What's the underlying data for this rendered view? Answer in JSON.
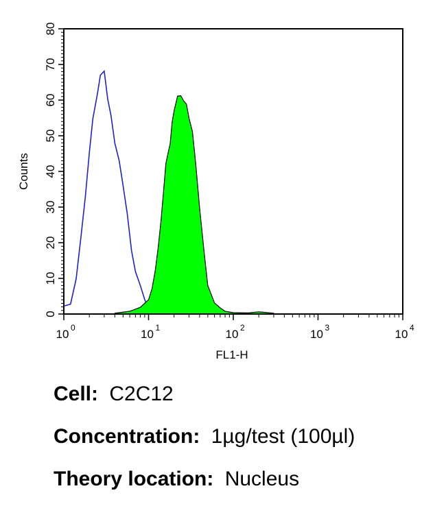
{
  "chart_data": {
    "type": "area",
    "xlabel": "FL1-H",
    "ylabel": "Counts",
    "xscale": "log",
    "xlim": [
      1,
      10000
    ],
    "ylim": [
      0,
      80
    ],
    "x_ticks": [
      {
        "base": "10",
        "exp": "0"
      },
      {
        "base": "10",
        "exp": "1"
      },
      {
        "base": "10",
        "exp": "2"
      },
      {
        "base": "10",
        "exp": "3"
      },
      {
        "base": "10",
        "exp": "4"
      }
    ],
    "y_ticks": [
      "0",
      "10",
      "20",
      "30",
      "40",
      "50",
      "60",
      "70",
      "80"
    ],
    "grid": false,
    "series": [
      {
        "style": "outline",
        "color": "#1f1fd6",
        "x": [
          1.0,
          1.2,
          1.4,
          1.6,
          1.8,
          2.0,
          2.2,
          2.5,
          2.7,
          3.0,
          3.3,
          3.6,
          4.0,
          4.5,
          5.0,
          5.6,
          6.3,
          7.0,
          8.0,
          9.0,
          10.0
        ],
        "y": [
          2,
          3,
          10,
          22,
          33,
          45,
          55,
          62,
          67,
          68,
          60,
          56,
          48,
          43,
          36,
          28,
          18,
          12,
          8,
          4,
          1
        ]
      },
      {
        "style": "filled",
        "color": "#00ff00",
        "x": [
          4.0,
          6.0,
          8.0,
          10.0,
          11.0,
          12.0,
          13.0,
          14.0,
          15.0,
          16.0,
          17.0,
          18.0,
          19.0,
          20.0,
          22.0,
          24.0,
          26.0,
          28.0,
          30.0,
          33.0,
          36.0,
          40.0,
          45.0,
          50.0,
          60.0,
          70.0,
          80.0,
          100.0,
          150.0,
          200.0,
          300.0
        ],
        "y": [
          0,
          1,
          2,
          4,
          7,
          12,
          19,
          26,
          34,
          42,
          45,
          48,
          54,
          57,
          61,
          61,
          60,
          59,
          55,
          51,
          42,
          30,
          18,
          8,
          3,
          1.5,
          1,
          0.5,
          0.3,
          0.5,
          0
        ]
      }
    ]
  },
  "captions": [
    {
      "label": "Cell:",
      "value": "C2C12"
    },
    {
      "label": "Concentration:",
      "value": "1µg/test (100µl)"
    },
    {
      "label": "Theory location:",
      "value": "Nucleus"
    }
  ]
}
